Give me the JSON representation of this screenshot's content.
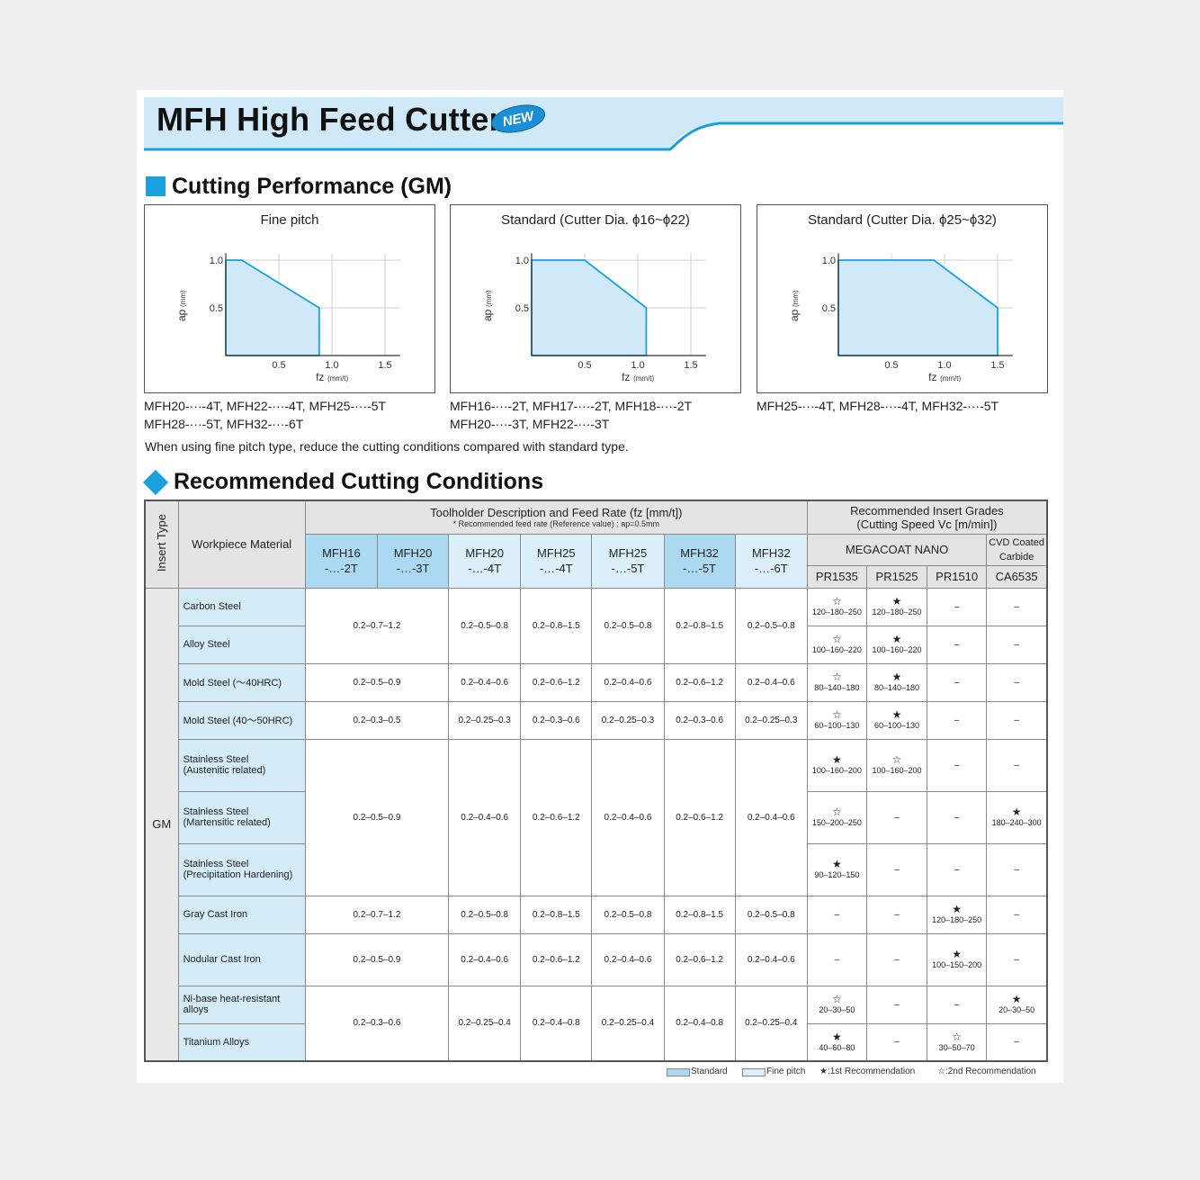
{
  "header": {
    "title": "MFH High Feed Cutter",
    "badge": "NEW"
  },
  "section1": {
    "title": "Cutting Performance (GM)"
  },
  "charts": [
    {
      "title": "Fine pitch",
      "ylabel": "ap",
      "yunit": "(mm)",
      "xlabel": "fz",
      "xunit": "(mm/t)",
      "models": [
        "MFH20-···-4T, MFH22-···-4T, MFH25-···-5T",
        "MFH28-···-5T, MFH32-···-6T"
      ]
    },
    {
      "title": "Standard (Cutter Dia. ϕ16~ϕ22)",
      "ylabel": "ap",
      "yunit": "(mm)",
      "xlabel": "fz",
      "xunit": "(mm/t)",
      "models": [
        "MFH16-···-2T, MFH17-···-2T, MFH18-···-2T",
        "MFH20-···-3T, MFH22-···-3T"
      ]
    },
    {
      "title": "Standard (Cutter Dia. ϕ25~ϕ32)",
      "ylabel": "ap",
      "yunit": "(mm)",
      "xlabel": "fz",
      "xunit": "(mm/t)",
      "models": [
        "MFH25-···-4T, MFH28-···-4T, MFH32-···-5T"
      ]
    }
  ],
  "chart_data": [
    {
      "type": "area",
      "title": "Fine pitch",
      "xlabel": "fz (mm/t)",
      "ylabel": "ap (mm)",
      "xlim": [
        0,
        1.6
      ],
      "ylim": [
        0,
        1.1
      ],
      "xticks": [
        0.5,
        1.0,
        1.5
      ],
      "yticks": [
        0.5,
        1.0
      ],
      "xtick_labels": [
        "0.5",
        "1.0",
        "1.5"
      ],
      "ytick_labels": [
        "0.5",
        "1.0"
      ],
      "x": [
        0,
        0,
        0.15,
        0.88,
        0.88
      ],
      "y": [
        0,
        1.0,
        1.0,
        0.5,
        0
      ]
    },
    {
      "type": "area",
      "title": "Standard (Cutter Dia. ϕ16~ϕ22)",
      "xlabel": "fz (mm/t)",
      "ylabel": "ap (mm)",
      "xlim": [
        0,
        1.6
      ],
      "ylim": [
        0,
        1.1
      ],
      "xticks": [
        0.5,
        1.0,
        1.5
      ],
      "yticks": [
        0.5,
        1.0
      ],
      "xtick_labels": [
        "0.5",
        "1.0",
        "1.5"
      ],
      "ytick_labels": [
        "0.5",
        "1.0"
      ],
      "x": [
        0,
        0,
        0.5,
        1.08,
        1.08
      ],
      "y": [
        0,
        1.0,
        1.0,
        0.5,
        0
      ]
    },
    {
      "type": "area",
      "title": "Standard (Cutter Dia. ϕ25~ϕ32)",
      "xlabel": "fz (mm/t)",
      "ylabel": "ap (mm)",
      "xlim": [
        0,
        1.6
      ],
      "ylim": [
        0,
        1.1
      ],
      "xticks": [
        0.5,
        1.0,
        1.5
      ],
      "yticks": [
        0.5,
        1.0
      ],
      "xtick_labels": [
        "0.5",
        "1.0",
        "1.5"
      ],
      "ytick_labels": [
        "0.5",
        "1.0"
      ],
      "x": [
        0,
        0,
        0.9,
        1.5,
        1.5
      ],
      "y": [
        0,
        1.0,
        1.0,
        0.5,
        0
      ]
    }
  ],
  "note": "When using fine pitch type, reduce the cutting conditions compared with standard type.",
  "section2": {
    "title": "Recommended Cutting Conditions"
  },
  "table": {
    "insert_type_label": "Insert Type",
    "workpiece_label": "Workpiece Material",
    "toolholder_label": "Toolholder Description and Feed Rate  (fz [mm/t])",
    "toolholder_sub": "* Recommended feed rate (Reference value) : ap=0.5mm",
    "grades_label_1": "Recommended Insert Grades",
    "grades_label_2": "(Cutting Speed Vc [m/min])",
    "megacoat": "MEGACOAT NANO",
    "cvd_1": "CVD Coated",
    "cvd_2": "Carbide",
    "models": [
      {
        "l1": "MFH16",
        "l2": "-…-2T"
      },
      {
        "l1": "MFH20",
        "l2": "-…-3T"
      },
      {
        "l1": "MFH20",
        "l2": "-…-4T"
      },
      {
        "l1": "MFH25",
        "l2": "-…-4T"
      },
      {
        "l1": "MFH25",
        "l2": "-…-5T"
      },
      {
        "l1": "MFH32",
        "l2": "-…-5T"
      },
      {
        "l1": "MFH32",
        "l2": "-…-6T"
      }
    ],
    "grades": [
      "PR1535",
      "PR1525",
      "PR1510",
      "CA6535"
    ],
    "gm_label": "GM",
    "materials": [
      "Carbon Steel",
      "Alloy Steel",
      "Mold Steel (～40HRC)",
      "Mold Steel (40～50HRC)",
      "Stainless Steel\n(Austenitic related)",
      "Stainless Steel\n(Martensitic related)",
      "Stainless Steel\n (Precipitation Hardening)",
      "Gray Cast Iron",
      "Nodular Cast Iron",
      "Ni-base heat-resistant alloys",
      "Titanium Alloys"
    ],
    "feed_groups": [
      [
        "0.2–0.7–1.2",
        "0.2–0.5–0.8",
        "0.2–0.8–1.5",
        "0.2–0.5–0.8",
        "0.2–0.8–1.5",
        "0.2–0.5–0.8"
      ],
      [
        "0.2–0.5–0.9",
        "0.2–0.4–0.6",
        "0.2–0.6–1.2",
        "0.2–0.4–0.6",
        "0.2–0.6–1.2",
        "0.2–0.4–0.6"
      ],
      [
        "0.2–0.3–0.5",
        "0.2–0.25–0.3",
        "0.2–0.3–0.6",
        "0.2–0.25–0.3",
        "0.2–0.3–0.6",
        "0.2–0.25–0.3"
      ],
      [
        "0.2–0.5–0.9",
        "0.2–0.4–0.6",
        "0.2–0.6–1.2",
        "0.2–0.4–0.6",
        "0.2–0.6–1.2",
        "0.2–0.4–0.6"
      ],
      [
        "0.2–0.7–1.2",
        "0.2–0.5–0.8",
        "0.2–0.8–1.5",
        "0.2–0.5–0.8",
        "0.2–0.8–1.5",
        "0.2–0.5–0.8"
      ],
      [
        "0.2–0.5–0.9",
        "0.2–0.4–0.6",
        "0.2–0.6–1.2",
        "0.2–0.4–0.6",
        "0.2–0.6–1.2",
        "0.2–0.4–0.6"
      ],
      [
        "0.2–0.3–0.6",
        "0.2–0.25–0.4",
        "0.2–0.4–0.8",
        "0.2–0.25–0.4",
        "0.2–0.4–0.8",
        "0.2–0.25–0.4"
      ]
    ],
    "grade_rows": [
      [
        {
          "m": "☆",
          "v": "120–180–250"
        },
        {
          "m": "★",
          "v": "120–180–250"
        },
        {
          "m": "",
          "v": "–"
        },
        {
          "m": "",
          "v": "–"
        }
      ],
      [
        {
          "m": "☆",
          "v": "100–160–220"
        },
        {
          "m": "★",
          "v": "100–160–220"
        },
        {
          "m": "",
          "v": "–"
        },
        {
          "m": "",
          "v": "–"
        }
      ],
      [
        {
          "m": "☆",
          "v": "80–140–180"
        },
        {
          "m": "★",
          "v": "80–140–180"
        },
        {
          "m": "",
          "v": "–"
        },
        {
          "m": "",
          "v": "–"
        }
      ],
      [
        {
          "m": "☆",
          "v": "60–100–130"
        },
        {
          "m": "★",
          "v": "60–100–130"
        },
        {
          "m": "",
          "v": "–"
        },
        {
          "m": "",
          "v": "–"
        }
      ],
      [
        {
          "m": "★",
          "v": "100–160–200"
        },
        {
          "m": "☆",
          "v": "100–160–200"
        },
        {
          "m": "",
          "v": "–"
        },
        {
          "m": "",
          "v": "–"
        }
      ],
      [
        {
          "m": "☆",
          "v": "150–200–250"
        },
        {
          "m": "",
          "v": "–"
        },
        {
          "m": "",
          "v": "–"
        },
        {
          "m": "★",
          "v": "180–240–300"
        }
      ],
      [
        {
          "m": "★",
          "v": "90–120–150"
        },
        {
          "m": "",
          "v": "–"
        },
        {
          "m": "",
          "v": "–"
        },
        {
          "m": "",
          "v": "–"
        }
      ],
      [
        {
          "m": "",
          "v": "–"
        },
        {
          "m": "",
          "v": "–"
        },
        {
          "m": "★",
          "v": "120–180–250"
        },
        {
          "m": "",
          "v": "–"
        }
      ],
      [
        {
          "m": "",
          "v": "–"
        },
        {
          "m": "",
          "v": "–"
        },
        {
          "m": "★",
          "v": "100–150–200"
        },
        {
          "m": "",
          "v": "–"
        }
      ],
      [
        {
          "m": "☆",
          "v": "20–30–50"
        },
        {
          "m": "",
          "v": "–"
        },
        {
          "m": "",
          "v": "–"
        },
        {
          "m": "★",
          "v": "20–30–50"
        }
      ],
      [
        {
          "m": "★",
          "v": "40–60–80"
        },
        {
          "m": "",
          "v": "–"
        },
        {
          "m": "☆",
          "v": "30–50–70"
        },
        {
          "m": "",
          "v": "–"
        }
      ]
    ]
  },
  "legend": {
    "standard": "Standard",
    "fine": "Fine pitch",
    "first": "★:1st Recommendation",
    "second": "☆:2nd Recommendation"
  },
  "colors": {
    "accent": "#1aa0dd",
    "standard_fill": "#aad9f1",
    "fine_fill": "#dcf0fb",
    "chart_line": "#1aa0dd",
    "chart_area": "#cfe9f8"
  }
}
